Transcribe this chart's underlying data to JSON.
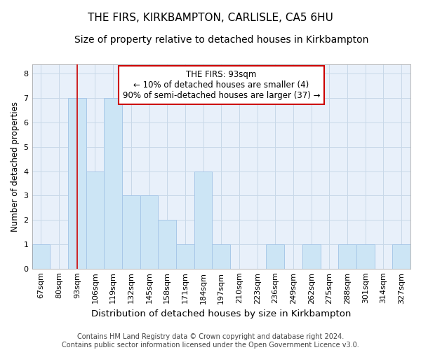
{
  "title": "THE FIRS, KIRKBAMPTON, CARLISLE, CA5 6HU",
  "subtitle": "Size of property relative to detached houses in Kirkbampton",
  "xlabel": "Distribution of detached houses by size in Kirkbampton",
  "ylabel": "Number of detached properties",
  "categories": [
    "67sqm",
    "80sqm",
    "93sqm",
    "106sqm",
    "119sqm",
    "132sqm",
    "145sqm",
    "158sqm",
    "171sqm",
    "184sqm",
    "197sqm",
    "210sqm",
    "223sqm",
    "236sqm",
    "249sqm",
    "262sqm",
    "275sqm",
    "288sqm",
    "301sqm",
    "314sqm",
    "327sqm"
  ],
  "values": [
    1,
    0,
    7,
    4,
    7,
    3,
    3,
    2,
    1,
    4,
    1,
    0,
    0,
    1,
    0,
    1,
    0,
    1,
    1,
    0,
    1
  ],
  "bar_color": "#cce5f5",
  "bar_edge_color": "#a8c8e8",
  "highlight_index": 2,
  "highlight_line_color": "#cc0000",
  "annotation_text": "THE FIRS: 93sqm\n← 10% of detached houses are smaller (4)\n90% of semi-detached houses are larger (37) →",
  "annotation_box_facecolor": "#ffffff",
  "annotation_box_edgecolor": "#cc0000",
  "ylim": [
    0,
    8.4
  ],
  "yticks": [
    0,
    1,
    2,
    3,
    4,
    5,
    6,
    7,
    8
  ],
  "grid_color": "#c8d8e8",
  "background_color": "#e8f0fa",
  "footer": "Contains HM Land Registry data © Crown copyright and database right 2024.\nContains public sector information licensed under the Open Government Licence v3.0.",
  "title_fontsize": 11,
  "subtitle_fontsize": 10,
  "xlabel_fontsize": 9.5,
  "ylabel_fontsize": 8.5,
  "tick_fontsize": 8,
  "annotation_fontsize": 8.5,
  "footer_fontsize": 7
}
